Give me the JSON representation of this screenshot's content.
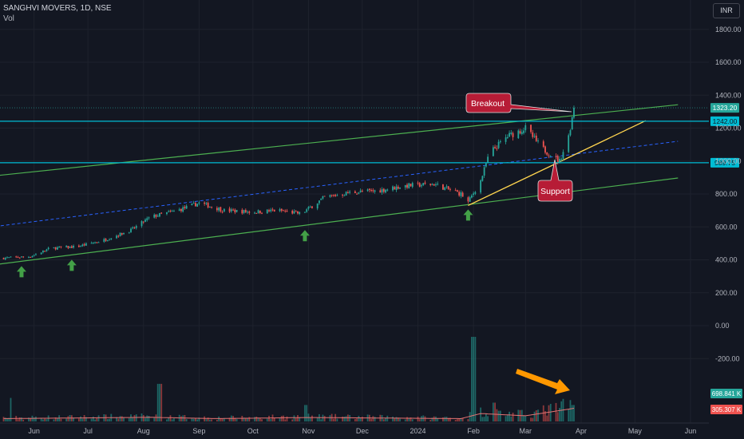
{
  "header": {
    "symbol": "SANGHVI MOVERS, 1D, NSE",
    "volume_label": "Vol",
    "currency_button": "INR"
  },
  "annotations": {
    "breakout": "Breakout",
    "support": "Support"
  },
  "colors": {
    "background": "#131722",
    "up": "#26a69a",
    "down": "#ef5350",
    "channel": "#4caf50",
    "mid": "#2962ff",
    "level": "#00bcd4",
    "trend": "#ffd54f",
    "callout": "#b71c36",
    "arrow_green": "#43a047",
    "arrow_orange": "#ff9800"
  },
  "chart_data": {
    "type": "candlestick",
    "price_axis": {
      "ticks": [
        -200,
        0,
        200,
        400,
        600,
        800,
        1000,
        1200,
        1400,
        1600,
        1800
      ],
      "tick_labels": [
        "-200.00",
        "0.00",
        "200.00",
        "400.00",
        "600.00",
        "800.00",
        "1000.00",
        "1200.00",
        "1400.00",
        "1600.00",
        "1800.00"
      ],
      "ylim": [
        -500,
        1900
      ]
    },
    "time_axis": {
      "labels": [
        "Jun",
        "Jul",
        "Aug",
        "Sep",
        "Oct",
        "Nov",
        "Dec",
        "2024",
        "Feb",
        "Mar",
        "Apr",
        "May",
        "Jun"
      ],
      "dates": [
        "2023-06-01",
        "2023-07-01",
        "2023-08-01",
        "2023-09-01",
        "2023-10-01",
        "2023-11-01",
        "2023-12-01",
        "2024-01-01",
        "2024-02-01",
        "2024-03-01",
        "2024-04-01",
        "2024-05-01",
        "2024-06-01"
      ]
    },
    "price_path": [
      {
        "date": "2023-05-13",
        "close": 410
      },
      {
        "date": "2023-05-30",
        "close": 420
      },
      {
        "date": "2023-06-10",
        "close": 470
      },
      {
        "date": "2023-06-25",
        "close": 480
      },
      {
        "date": "2023-07-10",
        "close": 520
      },
      {
        "date": "2023-07-25",
        "close": 580
      },
      {
        "date": "2023-08-05",
        "close": 660
      },
      {
        "date": "2023-08-20",
        "close": 700
      },
      {
        "date": "2023-09-01",
        "close": 745
      },
      {
        "date": "2023-09-15",
        "close": 700
      },
      {
        "date": "2023-10-01",
        "close": 690
      },
      {
        "date": "2023-10-15",
        "close": 700
      },
      {
        "date": "2023-10-28",
        "close": 680
      },
      {
        "date": "2023-11-10",
        "close": 780
      },
      {
        "date": "2023-11-25",
        "close": 810
      },
      {
        "date": "2023-12-10",
        "close": 820
      },
      {
        "date": "2023-12-25",
        "close": 850
      },
      {
        "date": "2024-01-10",
        "close": 860
      },
      {
        "date": "2024-01-25",
        "close": 800
      },
      {
        "date": "2024-01-29",
        "close": 750
      },
      {
        "date": "2024-02-05",
        "close": 880
      },
      {
        "date": "2024-02-10",
        "close": 1050
      },
      {
        "date": "2024-02-20",
        "close": 1150
      },
      {
        "date": "2024-03-01",
        "close": 1200
      },
      {
        "date": "2024-03-10",
        "close": 1080
      },
      {
        "date": "2024-03-20",
        "close": 1000
      },
      {
        "date": "2024-03-25",
        "close": 1150
      },
      {
        "date": "2024-03-28",
        "close": 1323.2
      }
    ],
    "volume_path": [
      {
        "date": "2023-05-13",
        "volume": 150000
      },
      {
        "date": "2023-06-20",
        "volume": 180000
      },
      {
        "date": "2023-08-05",
        "volume": 220000
      },
      {
        "date": "2023-09-10",
        "volume": 150000
      },
      {
        "date": "2023-11-01",
        "volume": 210000
      },
      {
        "date": "2024-01-25",
        "volume": 150000
      },
      {
        "date": "2024-02-05",
        "volume": 420000
      },
      {
        "date": "2024-03-01",
        "volume": 300000
      },
      {
        "date": "2024-03-28",
        "volume": 698841
      }
    ],
    "volume_spikes": [
      {
        "date": "2023-05-20",
        "volume": 1000000
      },
      {
        "date": "2023-08-10",
        "volume": 1600000
      },
      {
        "date": "2023-10-30",
        "volume": 700000
      },
      {
        "date": "2024-02-01",
        "volume": 3600000
      },
      {
        "date": "2024-02-12",
        "volume": 800000
      },
      {
        "date": "2024-03-28",
        "volume": 698841
      }
    ],
    "volume_ma_label": "305.307 K",
    "horizontal_levels": [
      {
        "price": 1242.0,
        "label": "1242.00"
      },
      {
        "price": 989.75,
        "label": "989.75"
      }
    ],
    "last_price": {
      "price": 1323.2,
      "label": "1323.20"
    },
    "last_volume_label": "698.841 K",
    "channel_lines": [
      {
        "role": "upper",
        "from": {
          "date": "2023-05-01",
          "price": 900
        },
        "to": {
          "date": "2024-05-25",
          "price": 1342
        }
      },
      {
        "role": "lower",
        "from": {
          "date": "2023-05-01",
          "price": 358
        },
        "to": {
          "date": "2024-05-25",
          "price": 897
        }
      },
      {
        "role": "middle",
        "from": {
          "date": "2023-05-01",
          "price": 590
        },
        "to": {
          "date": "2024-05-25",
          "price": 1120
        }
      }
    ],
    "trend_line": {
      "from": {
        "date": "2024-01-29",
        "price": 730
      },
      "to": {
        "date": "2024-05-07",
        "price": 1245
      }
    },
    "support_arrows": [
      "2023-05-25",
      "2023-06-22",
      "2023-10-30",
      "2024-01-29"
    ]
  }
}
